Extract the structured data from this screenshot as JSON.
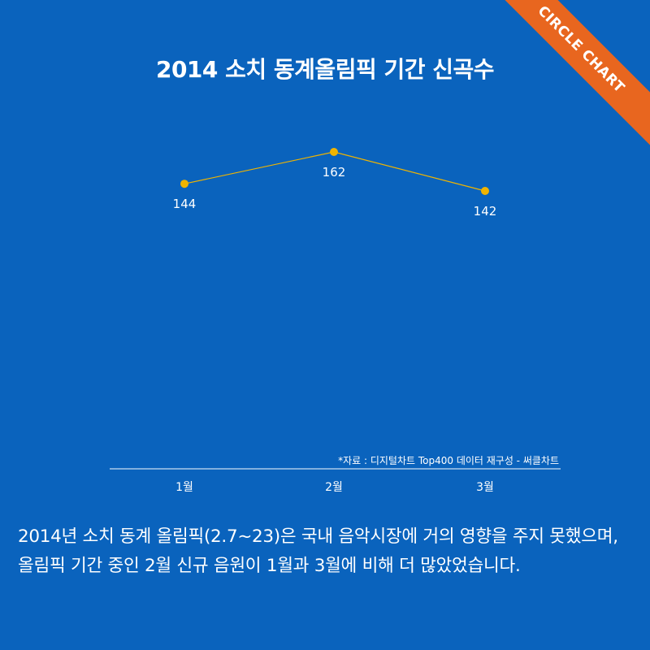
{
  "badge": "CIRCLE CHART",
  "chart_data": {
    "type": "line",
    "title": "2014 소치 동계올림픽 기간 신곡수",
    "categories": [
      "1월",
      "2월",
      "3월"
    ],
    "series": [
      {
        "values": [
          144,
          162,
          142
        ]
      }
    ],
    "data_labels": [
      "144",
      "162",
      "142"
    ],
    "ylim": [
      0,
      180
    ],
    "grid": false,
    "legend": "none",
    "colors": {
      "line": "#f0b400",
      "marker": "#f0b400",
      "axis": "#a9c9ea"
    }
  },
  "source_note": "*자료 : 디지털차트 Top400 데이터 재구성 - 써클차트",
  "caption": "2014년 소치 동계 올림픽(2.7~23)은 국내 음악시장에 거의 영향을  주지 못했으며, 올림픽 기간 중인 2월 신규 음원이 1월과 3월에 비해 더 많았었습니다."
}
